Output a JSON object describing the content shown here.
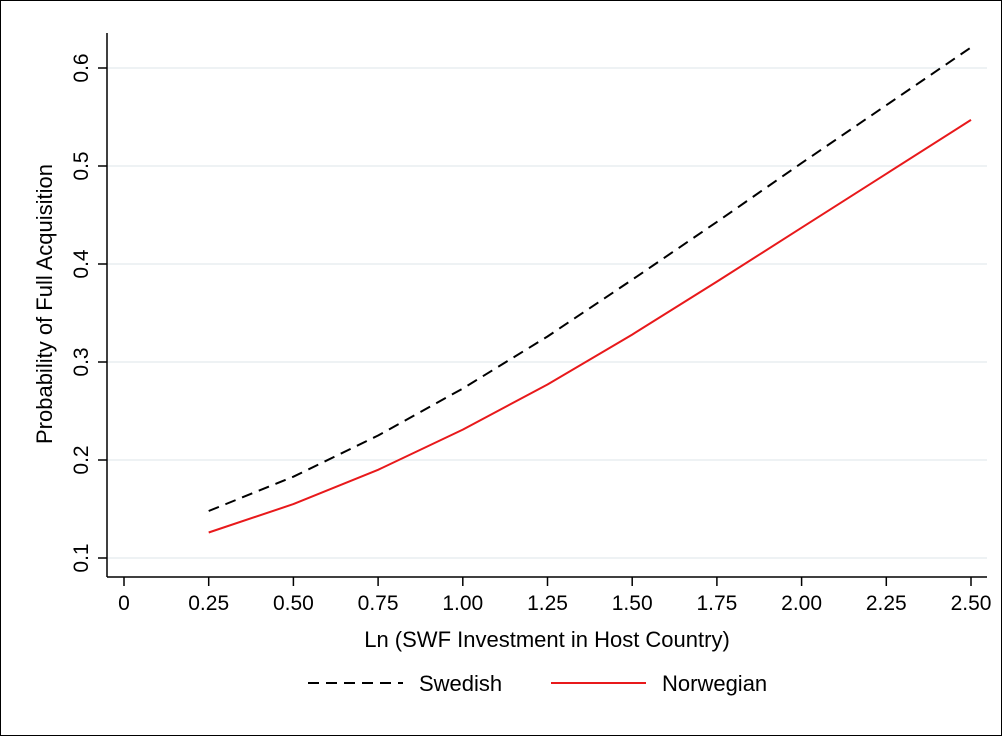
{
  "chart_data": {
    "type": "line",
    "title": "",
    "xlabel": "Ln (SWF Investment in Host Country)",
    "ylabel": "Probability of Full Acquisition",
    "xlim": [
      0,
      2.5
    ],
    "ylim": [
      0.1,
      0.6
    ],
    "x_ticks": [
      0,
      0.25,
      0.5,
      0.75,
      1.0,
      1.25,
      1.5,
      1.75,
      2.0,
      2.25,
      2.5
    ],
    "x_tick_labels": [
      "0",
      "0.25",
      "0.50",
      "0.75",
      "1.00",
      "1.25",
      "1.50",
      "1.75",
      "2.00",
      "2.25",
      "2.50"
    ],
    "y_ticks": [
      0.1,
      0.2,
      0.3,
      0.4,
      0.5,
      0.6
    ],
    "y_tick_labels": [
      "0.1",
      "0.2",
      "0.3",
      "0.4",
      "0.5",
      "0.6"
    ],
    "grid": true,
    "legend_position": "bottom",
    "x": [
      0.25,
      0.5,
      0.75,
      1.0,
      1.25,
      1.5,
      1.75,
      2.0,
      2.25,
      2.5
    ],
    "series": [
      {
        "name": "Swedish",
        "color": "#000000",
        "dash": "dashed",
        "values": [
          0.148,
          0.183,
          0.225,
          0.273,
          0.326,
          0.384,
          0.443,
          0.503,
          0.562,
          0.621
        ]
      },
      {
        "name": "Norwegian",
        "color": "#e8191b",
        "dash": "solid",
        "values": [
          0.126,
          0.155,
          0.19,
          0.231,
          0.277,
          0.328,
          0.382,
          0.437,
          0.492,
          0.547
        ]
      }
    ]
  }
}
